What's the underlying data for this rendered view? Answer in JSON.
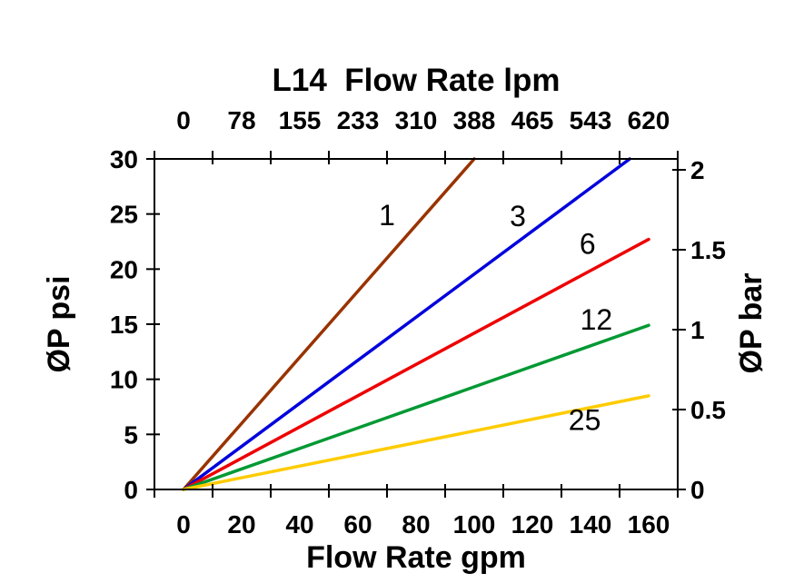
{
  "chart_data": {
    "type": "line",
    "title": "L14  Flow Rate lpm",
    "background_color": "#FFFFFF",
    "frame_color": "#000000",
    "axes": {
      "top": {
        "label": "L14  Flow Rate lpm",
        "unit": "lpm",
        "tick_labels": [
          "0",
          "78",
          "155",
          "233",
          "310",
          "388",
          "465",
          "543",
          "620"
        ]
      },
      "bottom": {
        "label": "Flow Rate gpm",
        "unit": "gpm",
        "tick_labels": [
          "0",
          "20",
          "40",
          "60",
          "80",
          "100",
          "120",
          "140",
          "160"
        ],
        "tick_values": [
          0,
          20,
          40,
          60,
          80,
          100,
          120,
          140,
          160
        ],
        "tick_mark_positions": [
          -10,
          10,
          30,
          50,
          70,
          90,
          110,
          130,
          150,
          170
        ],
        "range": [
          -10,
          170
        ]
      },
      "left": {
        "label": "ØP psi",
        "unit": "psi",
        "tick_labels": [
          "0",
          "5",
          "10",
          "15",
          "20",
          "25",
          "30"
        ],
        "tick_values": [
          0,
          5,
          10,
          15,
          20,
          25,
          30
        ],
        "range": [
          0,
          30
        ]
      },
      "right": {
        "label": "ØP bar",
        "unit": "bar",
        "tick_labels": [
          "0",
          "0.5",
          "1",
          "1.5",
          "2"
        ],
        "tick_values": [
          0,
          0.5,
          1,
          1.5,
          2
        ],
        "psi_per_unit": 14.504
      }
    },
    "series": [
      {
        "name": "1",
        "color": "#993300",
        "points": [
          [
            0,
            0
          ],
          [
            100,
            30
          ]
        ],
        "label_at": [
          70,
          24.9
        ]
      },
      {
        "name": "3",
        "color": "#0000DD",
        "points": [
          [
            0,
            0
          ],
          [
            153.5,
            30
          ]
        ],
        "label_at": [
          115,
          24.8
        ]
      },
      {
        "name": "6",
        "color": "#EE0000",
        "points": [
          [
            0,
            0
          ],
          [
            160,
            22.7
          ]
        ],
        "label_at": [
          139,
          22.3
        ]
      },
      {
        "name": "12",
        "color": "#009933",
        "points": [
          [
            0,
            0
          ],
          [
            160,
            14.9
          ]
        ],
        "label_at": [
          142,
          15.4
        ]
      },
      {
        "name": "25",
        "color": "#FFCC00",
        "points": [
          [
            0,
            0
          ],
          [
            160,
            8.5
          ]
        ],
        "label_at": [
          138,
          6.3
        ]
      }
    ],
    "grid": false,
    "legend": "inline-curve-labels"
  }
}
